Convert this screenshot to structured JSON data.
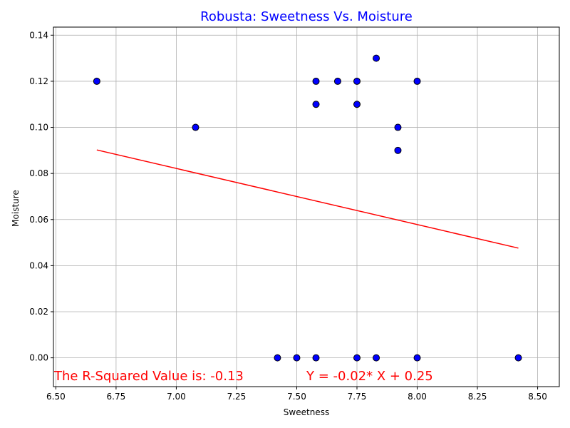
{
  "chart_data": {
    "type": "scatter",
    "title": "Robusta: Sweetness Vs. Moisture",
    "xlabel": "Sweetness",
    "ylabel": "Moisture",
    "xlim": [
      6.49,
      8.59
    ],
    "ylim": [
      -0.0125,
      0.1435
    ],
    "xticks": [
      "6.50",
      "6.75",
      "7.00",
      "7.25",
      "7.50",
      "7.75",
      "8.00",
      "8.25",
      "8.50"
    ],
    "xtick_values": [
      6.5,
      6.75,
      7.0,
      7.25,
      7.5,
      7.75,
      8.0,
      8.25,
      8.5
    ],
    "yticks": [
      "0.00",
      "0.02",
      "0.04",
      "0.06",
      "0.08",
      "0.10",
      "0.12",
      "0.14"
    ],
    "ytick_values": [
      0.0,
      0.02,
      0.04,
      0.06,
      0.08,
      0.1,
      0.12,
      0.14
    ],
    "grid": true,
    "points": [
      {
        "x": 6.67,
        "y": 0.12
      },
      {
        "x": 7.08,
        "y": 0.1
      },
      {
        "x": 7.58,
        "y": 0.12
      },
      {
        "x": 7.58,
        "y": 0.11
      },
      {
        "x": 7.67,
        "y": 0.12
      },
      {
        "x": 7.75,
        "y": 0.12
      },
      {
        "x": 7.75,
        "y": 0.11
      },
      {
        "x": 7.83,
        "y": 0.13
      },
      {
        "x": 7.92,
        "y": 0.1
      },
      {
        "x": 7.92,
        "y": 0.09
      },
      {
        "x": 8.0,
        "y": 0.12
      },
      {
        "x": 7.42,
        "y": 0.0
      },
      {
        "x": 7.5,
        "y": 0.0
      },
      {
        "x": 7.58,
        "y": 0.0
      },
      {
        "x": 7.75,
        "y": 0.0
      },
      {
        "x": 7.83,
        "y": 0.0
      },
      {
        "x": 8.0,
        "y": 0.0
      },
      {
        "x": 8.42,
        "y": 0.0
      }
    ],
    "regression_line": {
      "x": [
        6.67,
        8.42
      ],
      "y": [
        0.0902,
        0.0476
      ]
    },
    "annotations": {
      "r_squared": "The R-Squared Value is: -0.13",
      "equation": "Y = -0.02* X + 0.25"
    },
    "colors": {
      "title": "#0000ff",
      "point_fill": "#0000ff",
      "point_edge": "#000000",
      "line": "#ff0000",
      "annotation": "#ff0000",
      "grid": "#b0b0b0"
    }
  }
}
